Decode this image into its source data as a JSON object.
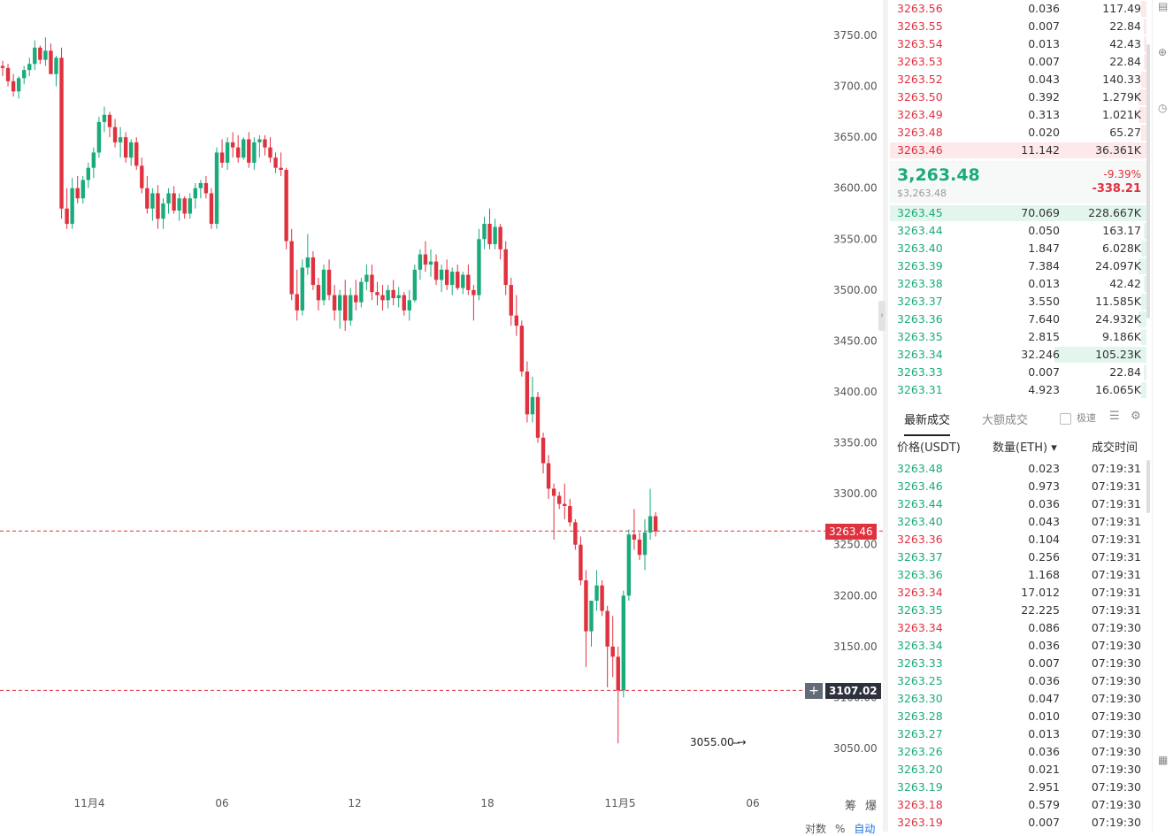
{
  "chart": {
    "y_ticks": [
      "3750.00",
      "3700.00",
      "3650.00",
      "3600.00",
      "3550.00",
      "3500.00",
      "3450.00",
      "3400.00",
      "3350.00",
      "3300.00",
      "3250.00",
      "3200.00",
      "3150.00",
      "3100.00",
      "3050.00"
    ],
    "x_ticks": [
      "11月4",
      "06",
      "12",
      "18",
      "11月5",
      "06"
    ],
    "last_price_tag": "3263.46",
    "crosshair_price_tag": "3107.02",
    "low_label": "3055.00 →",
    "right_tools": [
      "筹",
      "爆"
    ],
    "bottom_tools": [
      "对数",
      "%",
      "自动"
    ],
    "colors": {
      "up": "#1aab7a",
      "down": "#e0313f",
      "crosshair": "#636a78"
    }
  },
  "chart_data": {
    "type": "candlestick",
    "ylim": [
      3040,
      3780
    ],
    "candles": [
      [
        3720,
        3725,
        3710,
        3718
      ],
      [
        3718,
        3722,
        3700,
        3705
      ],
      [
        3705,
        3712,
        3690,
        3695
      ],
      [
        3695,
        3710,
        3688,
        3708
      ],
      [
        3708,
        3720,
        3702,
        3716
      ],
      [
        3716,
        3728,
        3710,
        3722
      ],
      [
        3722,
        3745,
        3716,
        3738
      ],
      [
        3738,
        3740,
        3722,
        3726
      ],
      [
        3726,
        3748,
        3720,
        3735
      ],
      [
        3735,
        3742,
        3712,
        3712
      ],
      [
        3712,
        3730,
        3700,
        3728
      ],
      [
        3728,
        3738,
        3570,
        3580
      ],
      [
        3580,
        3600,
        3560,
        3565
      ],
      [
        3565,
        3610,
        3560,
        3600
      ],
      [
        3600,
        3612,
        3585,
        3590
      ],
      [
        3590,
        3612,
        3585,
        3608
      ],
      [
        3608,
        3625,
        3600,
        3620
      ],
      [
        3620,
        3640,
        3610,
        3635
      ],
      [
        3635,
        3670,
        3630,
        3665
      ],
      [
        3665,
        3680,
        3655,
        3672
      ],
      [
        3672,
        3675,
        3650,
        3660
      ],
      [
        3660,
        3668,
        3640,
        3645
      ],
      [
        3645,
        3660,
        3630,
        3650
      ],
      [
        3650,
        3655,
        3625,
        3630
      ],
      [
        3630,
        3648,
        3622,
        3645
      ],
      [
        3645,
        3650,
        3618,
        3622
      ],
      [
        3622,
        3630,
        3595,
        3600
      ],
      [
        3600,
        3612,
        3575,
        3580
      ],
      [
        3580,
        3600,
        3568,
        3595
      ],
      [
        3595,
        3603,
        3560,
        3570
      ],
      [
        3570,
        3590,
        3560,
        3585
      ],
      [
        3585,
        3600,
        3575,
        3595
      ],
      [
        3595,
        3602,
        3575,
        3578
      ],
      [
        3578,
        3595,
        3568,
        3590
      ],
      [
        3590,
        3592,
        3570,
        3575
      ],
      [
        3575,
        3595,
        3570,
        3590
      ],
      [
        3590,
        3605,
        3580,
        3600
      ],
      [
        3600,
        3608,
        3590,
        3605
      ],
      [
        3605,
        3612,
        3590,
        3595
      ],
      [
        3595,
        3600,
        3560,
        3565
      ],
      [
        3565,
        3640,
        3560,
        3635
      ],
      [
        3635,
        3648,
        3620,
        3625
      ],
      [
        3625,
        3650,
        3618,
        3645
      ],
      [
        3645,
        3655,
        3630,
        3640
      ],
      [
        3640,
        3652,
        3625,
        3630
      ],
      [
        3630,
        3650,
        3628,
        3648
      ],
      [
        3648,
        3655,
        3620,
        3625
      ],
      [
        3625,
        3650,
        3618,
        3645
      ],
      [
        3645,
        3652,
        3630,
        3648
      ],
      [
        3648,
        3652,
        3632,
        3640
      ],
      [
        3640,
        3650,
        3625,
        3630
      ],
      [
        3630,
        3635,
        3615,
        3620
      ],
      [
        3620,
        3635,
        3612,
        3618
      ],
      [
        3618,
        3620,
        3540,
        3548
      ],
      [
        3548,
        3560,
        3490,
        3496
      ],
      [
        3496,
        3520,
        3470,
        3480
      ],
      [
        3480,
        3530,
        3475,
        3522
      ],
      [
        3522,
        3555,
        3515,
        3532
      ],
      [
        3532,
        3538,
        3500,
        3505
      ],
      [
        3505,
        3512,
        3480,
        3490
      ],
      [
        3490,
        3525,
        3485,
        3520
      ],
      [
        3520,
        3530,
        3490,
        3495
      ],
      [
        3495,
        3505,
        3470,
        3480
      ],
      [
        3480,
        3500,
        3462,
        3495
      ],
      [
        3495,
        3510,
        3460,
        3470
      ],
      [
        3470,
        3502,
        3465,
        3495
      ],
      [
        3495,
        3510,
        3480,
        3488
      ],
      [
        3488,
        3512,
        3483,
        3508
      ],
      [
        3508,
        3525,
        3500,
        3515
      ],
      [
        3515,
        3525,
        3490,
        3498
      ],
      [
        3498,
        3508,
        3485,
        3495
      ],
      [
        3495,
        3505,
        3480,
        3490
      ],
      [
        3490,
        3505,
        3482,
        3500
      ],
      [
        3500,
        3510,
        3485,
        3492
      ],
      [
        3492,
        3503,
        3483,
        3495
      ],
      [
        3495,
        3498,
        3475,
        3480
      ],
      [
        3480,
        3500,
        3470,
        3490
      ],
      [
        3490,
        3525,
        3488,
        3520
      ],
      [
        3520,
        3540,
        3510,
        3535
      ],
      [
        3535,
        3548,
        3518,
        3525
      ],
      [
        3525,
        3540,
        3513,
        3528
      ],
      [
        3528,
        3535,
        3505,
        3510
      ],
      [
        3510,
        3525,
        3498,
        3520
      ],
      [
        3520,
        3530,
        3500,
        3505
      ],
      [
        3505,
        3522,
        3495,
        3518
      ],
      [
        3518,
        3525,
        3500,
        3502
      ],
      [
        3502,
        3518,
        3496,
        3515
      ],
      [
        3515,
        3525,
        3495,
        3500
      ],
      [
        3500,
        3505,
        3470,
        3495
      ],
      [
        3495,
        3560,
        3490,
        3550
      ],
      [
        3550,
        3572,
        3540,
        3565
      ],
      [
        3565,
        3580,
        3540,
        3545
      ],
      [
        3545,
        3570,
        3540,
        3562
      ],
      [
        3562,
        3565,
        3530,
        3540
      ],
      [
        3540,
        3548,
        3495,
        3505
      ],
      [
        3505,
        3512,
        3465,
        3475
      ],
      [
        3475,
        3495,
        3455,
        3465
      ],
      [
        3465,
        3470,
        3415,
        3420
      ],
      [
        3420,
        3430,
        3370,
        3378
      ],
      [
        3378,
        3415,
        3370,
        3395
      ],
      [
        3395,
        3400,
        3350,
        3355
      ],
      [
        3355,
        3360,
        3320,
        3330
      ],
      [
        3330,
        3338,
        3295,
        3305
      ],
      [
        3305,
        3310,
        3255,
        3298
      ],
      [
        3298,
        3302,
        3285,
        3290
      ],
      [
        3290,
        3310,
        3275,
        3288
      ],
      [
        3288,
        3295,
        3268,
        3272
      ],
      [
        3272,
        3275,
        3245,
        3250
      ],
      [
        3250,
        3258,
        3210,
        3215
      ],
      [
        3215,
        3225,
        3130,
        3165
      ],
      [
        3165,
        3190,
        3150,
        3195
      ],
      [
        3195,
        3225,
        3185,
        3210
      ],
      [
        3210,
        3215,
        3180,
        3185
      ],
      [
        3185,
        3190,
        3110,
        3150
      ],
      [
        3150,
        3180,
        3120,
        3140
      ],
      [
        3140,
        3150,
        3055,
        3107
      ],
      [
        3107,
        3205,
        3100,
        3200
      ],
      [
        3200,
        3265,
        3195,
        3260
      ],
      [
        3260,
        3285,
        3245,
        3255
      ],
      [
        3255,
        3262,
        3235,
        3240
      ],
      [
        3240,
        3275,
        3225,
        3262
      ],
      [
        3262,
        3305,
        3255,
        3278
      ],
      [
        3278,
        3282,
        3258,
        3263
      ]
    ]
  },
  "asks": [
    {
      "price": "3263.56",
      "qty": "0.036",
      "total": "117.49",
      "depth": 0.02
    },
    {
      "price": "3263.55",
      "qty": "0.007",
      "total": "22.84",
      "depth": 0.01
    },
    {
      "price": "3263.54",
      "qty": "0.013",
      "total": "42.43",
      "depth": 0.01
    },
    {
      "price": "3263.53",
      "qty": "0.007",
      "total": "22.84",
      "depth": 0.01
    },
    {
      "price": "3263.52",
      "qty": "0.043",
      "total": "140.33",
      "depth": 0.02
    },
    {
      "price": "3263.50",
      "qty": "0.392",
      "total": "1.279K",
      "depth": 0.03
    },
    {
      "price": "3263.49",
      "qty": "0.313",
      "total": "1.021K",
      "depth": 0.03
    },
    {
      "price": "3263.48",
      "qty": "0.020",
      "total": "65.27",
      "depth": 0.02
    },
    {
      "price": "3263.46",
      "qty": "11.142",
      "total": "36.361K",
      "depth": 1.0
    }
  ],
  "ticker": {
    "last": "3,263.48",
    "usd": "$3,263.48",
    "pct": "-9.39%",
    "chg": "-338.21"
  },
  "bids": [
    {
      "price": "3263.45",
      "qty": "70.069",
      "total": "228.667K",
      "depth": 1.0
    },
    {
      "price": "3263.44",
      "qty": "0.050",
      "total": "163.17",
      "depth": 0.01
    },
    {
      "price": "3263.40",
      "qty": "1.847",
      "total": "6.028K",
      "depth": 0.02
    },
    {
      "price": "3263.39",
      "qty": "7.384",
      "total": "24.097K",
      "depth": 0.03
    },
    {
      "price": "3263.38",
      "qty": "0.013",
      "total": "42.42",
      "depth": 0.01
    },
    {
      "price": "3263.37",
      "qty": "3.550",
      "total": "11.585K",
      "depth": 0.02
    },
    {
      "price": "3263.36",
      "qty": "7.640",
      "total": "24.932K",
      "depth": 0.03
    },
    {
      "price": "3263.35",
      "qty": "2.815",
      "total": "9.186K",
      "depth": 0.02
    },
    {
      "price": "3263.34",
      "qty": "32.246",
      "total": "105.23K",
      "depth": 0.36
    },
    {
      "price": "3263.33",
      "qty": "0.007",
      "total": "22.84",
      "depth": 0.01
    },
    {
      "price": "3263.31",
      "qty": "4.923",
      "total": "16.065K",
      "depth": 0.02
    }
  ],
  "trades_tabs": {
    "latest": "最新成交",
    "large": "大额成交",
    "speed": "极速"
  },
  "trades_header": {
    "price": "价格(USDT)",
    "qty": "数量(ETH) ▾",
    "time": "成交时间"
  },
  "trades": [
    {
      "price": "3263.48",
      "qty": "0.023",
      "time": "07:19:31",
      "side": "buy"
    },
    {
      "price": "3263.46",
      "qty": "0.973",
      "time": "07:19:31",
      "side": "buy"
    },
    {
      "price": "3263.44",
      "qty": "0.036",
      "time": "07:19:31",
      "side": "buy"
    },
    {
      "price": "3263.40",
      "qty": "0.043",
      "time": "07:19:31",
      "side": "buy"
    },
    {
      "price": "3263.36",
      "qty": "0.104",
      "time": "07:19:31",
      "side": "sell"
    },
    {
      "price": "3263.37",
      "qty": "0.256",
      "time": "07:19:31",
      "side": "buy"
    },
    {
      "price": "3263.36",
      "qty": "1.168",
      "time": "07:19:31",
      "side": "buy"
    },
    {
      "price": "3263.34",
      "qty": "17.012",
      "time": "07:19:31",
      "side": "sell"
    },
    {
      "price": "3263.35",
      "qty": "22.225",
      "time": "07:19:31",
      "side": "buy"
    },
    {
      "price": "3263.34",
      "qty": "0.086",
      "time": "07:19:30",
      "side": "sell"
    },
    {
      "price": "3263.34",
      "qty": "0.036",
      "time": "07:19:30",
      "side": "buy"
    },
    {
      "price": "3263.33",
      "qty": "0.007",
      "time": "07:19:30",
      "side": "buy"
    },
    {
      "price": "3263.25",
      "qty": "0.036",
      "time": "07:19:30",
      "side": "buy"
    },
    {
      "price": "3263.30",
      "qty": "0.047",
      "time": "07:19:30",
      "side": "buy"
    },
    {
      "price": "3263.28",
      "qty": "0.010",
      "time": "07:19:30",
      "side": "buy"
    },
    {
      "price": "3263.27",
      "qty": "0.013",
      "time": "07:19:30",
      "side": "buy"
    },
    {
      "price": "3263.26",
      "qty": "0.036",
      "time": "07:19:30",
      "side": "buy"
    },
    {
      "price": "3263.20",
      "qty": "0.021",
      "time": "07:19:30",
      "side": "buy"
    },
    {
      "price": "3263.19",
      "qty": "2.951",
      "time": "07:19:30",
      "side": "buy"
    },
    {
      "price": "3263.18",
      "qty": "0.579",
      "time": "07:19:30",
      "side": "sell"
    },
    {
      "price": "3263.19",
      "qty": "0.007",
      "time": "07:19:30",
      "side": "sell"
    }
  ]
}
